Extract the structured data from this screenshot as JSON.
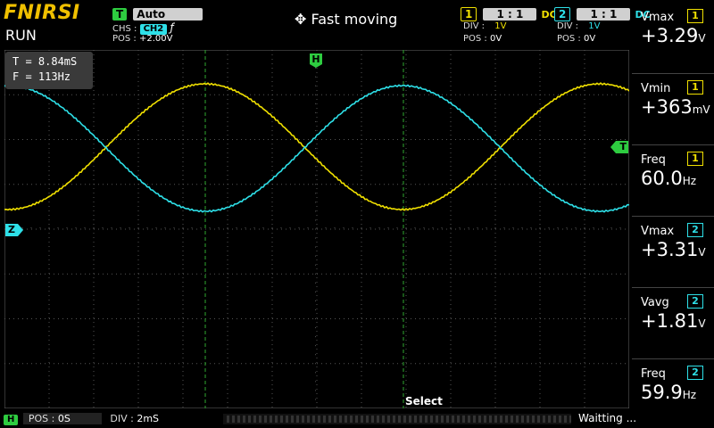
{
  "brand": "FNIRSI",
  "status": "RUN",
  "trigger": {
    "badge": "T",
    "mode": "Auto",
    "source_label": "CHS :",
    "source": "CH2",
    "edge_icon": "rising-edge-icon",
    "pos_label": "POS :",
    "pos": "+2.00V"
  },
  "mode_title": "Fast moving",
  "ch1": {
    "badge": "1",
    "probe": "1 : 1",
    "coupling": "DC",
    "div_label": "DIV :",
    "div": "1V",
    "pos_label": "POS :",
    "pos": "0V",
    "color": "#f0e000"
  },
  "ch2": {
    "badge": "2",
    "probe": "1 : 1",
    "coupling": "DC",
    "div_label": "DIV :",
    "div": "1V",
    "pos_label": "POS :",
    "pos": "0V",
    "color": "#2ee0e8"
  },
  "cursor_readout": {
    "t": "T = 8.84mS",
    "f": "F = 113Hz"
  },
  "markers": {
    "h": "H",
    "t": "T",
    "z": "Z"
  },
  "select_label": "Select",
  "timebase": {
    "badge": "H",
    "pos_label": "POS :",
    "pos": "0S",
    "div_label": "DIV :",
    "div": "2mS"
  },
  "status_msg": "Waitting ...",
  "measurements": [
    {
      "label": "Vmax",
      "channel": "1",
      "value": "+3.29",
      "unit": "V"
    },
    {
      "label": "Vmin",
      "channel": "1",
      "value": "+363",
      "unit": "mV"
    },
    {
      "label": "Freq",
      "channel": "1",
      "value": "60.0",
      "unit": "Hz"
    },
    {
      "label": "Vmax",
      "channel": "2",
      "value": "+3.31",
      "unit": "V"
    },
    {
      "label": "Vavg",
      "channel": "2",
      "value": "+1.81",
      "unit": "V"
    },
    {
      "label": "Freq",
      "channel": "2",
      "value": "59.9",
      "unit": "Hz"
    }
  ],
  "colors": {
    "grid": "#555555",
    "cursor": "#2fa82f",
    "accent_green": "#2ecc40",
    "brand": "#f0c000"
  }
}
